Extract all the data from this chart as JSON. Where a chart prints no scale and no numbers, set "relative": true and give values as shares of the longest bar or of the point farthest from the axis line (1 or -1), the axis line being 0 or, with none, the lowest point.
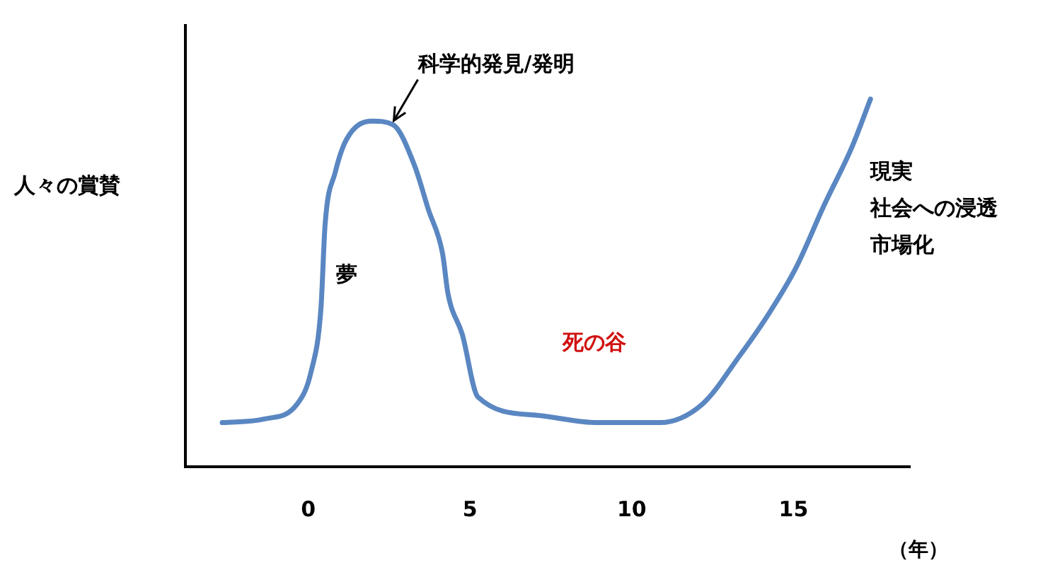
{
  "chart_data": {
    "type": "line",
    "relative": true,
    "ylabel": "人々の賞賛",
    "xlabel": "（年）",
    "xlim": [
      -3.8,
      18.6
    ],
    "xticks": [
      0,
      5,
      10,
      15
    ],
    "grid": false,
    "legend": false,
    "marker": "none",
    "line_style": "solid",
    "annotations": [
      {
        "text": "科学的発見/発明",
        "x": 2.6,
        "y": 0.93
      },
      "夢",
      "死の谷",
      "現実",
      "社会への浸透",
      "市場化"
    ],
    "series": [
      {
        "color": "#5a87c2",
        "x": [
          -2.66,
          -1.35,
          -0.35,
          0.09,
          0.39,
          0.52,
          0.83,
          1.18,
          1.97,
          2.62,
          3.28,
          3.71,
          4.15,
          4.32,
          4.76,
          5.24,
          7.07,
          8.95,
          10.87,
          12.18,
          13.32,
          14.19,
          15.07,
          15.94,
          16.81,
          17.38
        ],
        "values": [
          0.12,
          0.13,
          0.17,
          0.26,
          0.43,
          0.66,
          0.8,
          0.89,
          0.94,
          0.93,
          0.82,
          0.7,
          0.58,
          0.47,
          0.36,
          0.19,
          0.14,
          0.12,
          0.12,
          0.17,
          0.3,
          0.41,
          0.54,
          0.71,
          0.87,
          1.0
        ]
      }
    ]
  }
}
